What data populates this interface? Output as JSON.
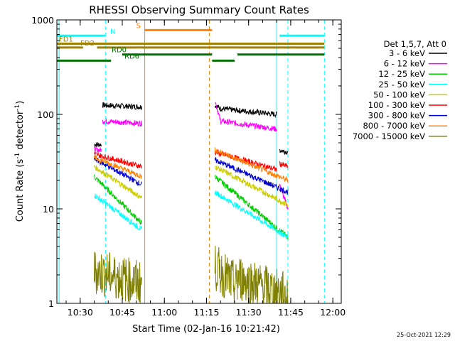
{
  "chart_data": {
    "type": "line",
    "title": "RHESSI Observing Summary Count Rates",
    "xlabel": "Start Time (02-Jan-16 10:21:42)",
    "ylabel": "Count Rate (s",
    "ylabel_sup": "-1",
    "ylabel_tail": " detector",
    "ylabel_tail_sup": "-1",
    "ylabel_close": ")",
    "yscale": "log",
    "ylim": [
      1,
      1000
    ],
    "xlim": [
      "10:21:42",
      "12:03:00"
    ],
    "x_ticks": [
      "10:30",
      "10:45",
      "11:00",
      "11:15",
      "11:30",
      "11:45",
      "12:00"
    ],
    "y_ticks": [
      "1",
      "10",
      "100",
      "1000"
    ],
    "legend_placement": "right",
    "legend_header": "Det 1,5,7, Att 0",
    "series": [
      {
        "name": "3 - 6 keV",
        "color": "#000000",
        "segments": [
          [
            [
              "10:35:00",
              48
            ],
            [
              "10:37:30",
              48
            ]
          ],
          [
            [
              "10:38:00",
              125
            ],
            [
              "10:52:00",
              120
            ]
          ],
          [
            [
              "11:18:00",
              125
            ],
            [
              "11:20:00",
              115
            ],
            [
              "11:40:00",
              100
            ]
          ],
          [
            [
              "11:41:00",
              42
            ],
            [
              "11:44:00",
              40
            ]
          ]
        ]
      },
      {
        "name": "6 - 12 keV",
        "color": "#ff00ff",
        "segments": [
          [
            [
              "10:35:00",
              42
            ],
            [
              "10:37:30",
              42
            ]
          ],
          [
            [
              "10:38:00",
              85
            ],
            [
              "10:52:00",
              80
            ]
          ],
          [
            [
              "11:18:00",
              140
            ],
            [
              "11:20:00",
              85
            ],
            [
              "11:40:00",
              70
            ]
          ],
          [
            [
              "11:41:00",
              18
            ],
            [
              "11:44:00",
              10
            ]
          ]
        ]
      },
      {
        "name": "12 - 25 keV",
        "color": "#00cc00",
        "segments": [
          [
            [
              "10:35:00",
              22
            ],
            [
              "10:52:00",
              7
            ]
          ],
          [
            [
              "11:18:00",
              22
            ],
            [
              "11:44:00",
              5
            ]
          ]
        ]
      },
      {
        "name": "25 - 50 keV",
        "color": "#00ffff",
        "segments": [
          [
            [
              "10:35:00",
              14
            ],
            [
              "10:52:00",
              6
            ]
          ],
          [
            [
              "11:18:00",
              15
            ],
            [
              "11:44:00",
              5
            ]
          ]
        ]
      },
      {
        "name": "50 - 100 keV",
        "color": "#cccc00",
        "segments": [
          [
            [
              "10:35:00",
              28
            ],
            [
              "10:52:00",
              13
            ]
          ],
          [
            [
              "11:18:00",
              28
            ],
            [
              "11:44:00",
              11
            ]
          ]
        ]
      },
      {
        "name": "100 - 300 keV",
        "color": "#ff0000",
        "segments": [
          [
            [
              "10:35:00",
              38
            ],
            [
              "10:52:00",
              28
            ]
          ],
          [
            [
              "11:18:00",
              40
            ],
            [
              "11:40:00",
              26
            ]
          ],
          [
            [
              "11:41:00",
              30
            ],
            [
              "11:44:00",
              28
            ]
          ]
        ]
      },
      {
        "name": "300 - 800 keV",
        "color": "#0000cc",
        "segments": [
          [
            [
              "10:35:00",
              34
            ],
            [
              "10:52:00",
              18
            ]
          ],
          [
            [
              "11:18:00",
              33
            ],
            [
              "11:44:00",
              15
            ]
          ]
        ]
      },
      {
        "name": "800 - 7000 keV",
        "color": "#ff8000",
        "segments": [
          [
            [
              "10:35:00",
              35
            ],
            [
              "10:52:00",
              22
            ]
          ],
          [
            [
              "11:18:00",
              42
            ],
            [
              "11:44:00",
              20
            ]
          ]
        ]
      },
      {
        "name": "7000 - 15000 keV",
        "color": "#808000",
        "segments": [
          [
            [
              "10:35:00",
              2.2
            ],
            [
              "10:52:00",
              1.6
            ]
          ],
          [
            [
              "11:18:00",
              2.4
            ],
            [
              "11:26:00",
              1.5
            ]
          ],
          [
            [
              "11:26:00",
              1.9
            ],
            [
              "11:44:00",
              1.2
            ]
          ]
        ]
      }
    ],
    "flag_bars": [
      {
        "label": "N",
        "color": "#00ffff",
        "y": 680,
        "spans": [
          [
            "10:21:42",
            "10:39:00"
          ],
          [
            "11:41:00",
            "11:57:00"
          ]
        ]
      },
      {
        "label": "S",
        "color": "#ff8000",
        "y": 780,
        "spans": [
          [
            "10:53:00",
            "11:17:00"
          ]
        ]
      },
      {
        "label": "FD1",
        "color": "#a08000",
        "y": 560,
        "spans": [
          [
            "10:21:42",
            "11:57:00"
          ]
        ]
      },
      {
        "label": "FD2",
        "color": "#a08000",
        "y": 510,
        "spans": [
          [
            "10:21:42",
            "10:31:00"
          ],
          [
            "10:36:00",
            "11:57:00"
          ]
        ]
      },
      {
        "label": "RD0",
        "color": "#007000",
        "y": 430,
        "spans": [
          [
            "10:45:00",
            "11:17:00"
          ],
          [
            "11:26:00",
            "11:57:00"
          ]
        ]
      },
      {
        "label": "RD6",
        "color": "#007000",
        "y": 370,
        "spans": [
          [
            "10:21:42",
            "10:41:00"
          ],
          [
            "11:17:00",
            "11:25:00"
          ]
        ]
      }
    ],
    "vlines": [
      {
        "t": "10:22:30",
        "color": "#00ffff",
        "style": "solid"
      },
      {
        "t": "10:39:00",
        "color": "#00ffff",
        "style": "dashed"
      },
      {
        "t": "10:53:00",
        "color": "#ff8000",
        "style": "solid"
      },
      {
        "t": "11:16:00",
        "color": "#ff8000",
        "style": "dashed"
      },
      {
        "t": "11:40:00",
        "color": "#00ffff",
        "style": "solid"
      },
      {
        "t": "11:44:00",
        "color": "#00ffff",
        "style": "dashed"
      },
      {
        "t": "11:57:00",
        "color": "#00ffff",
        "style": "dashed"
      }
    ]
  },
  "timestamp": "25-Oct-2021 12:29"
}
